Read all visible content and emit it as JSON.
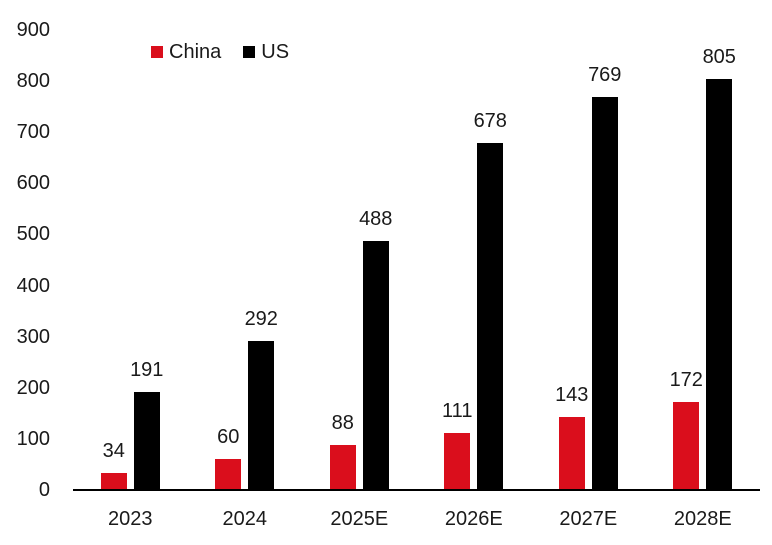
{
  "chart_data": {
    "type": "bar",
    "categories": [
      "2023",
      "2024",
      "2025E",
      "2026E",
      "2027E",
      "2028E"
    ],
    "series": [
      {
        "name": "China",
        "color": "#DA0E1C",
        "values": [
          34,
          60,
          88,
          111,
          143,
          172
        ]
      },
      {
        "name": "US",
        "color": "#000000",
        "values": [
          191,
          292,
          488,
          678,
          769,
          805
        ]
      }
    ],
    "title": "",
    "xlabel": "",
    "ylabel": "",
    "ylim": [
      0,
      900
    ],
    "y_ticks": [
      0,
      100,
      200,
      300,
      400,
      500,
      600,
      700,
      800,
      900
    ],
    "grid": false,
    "legend_position": "top-left",
    "data_labels": true
  },
  "colors": {
    "text": "#1a1a1a",
    "axis_line": "#000000",
    "background": "#ffffff",
    "china_red": "#DA0E1C",
    "us_black": "#000000"
  }
}
